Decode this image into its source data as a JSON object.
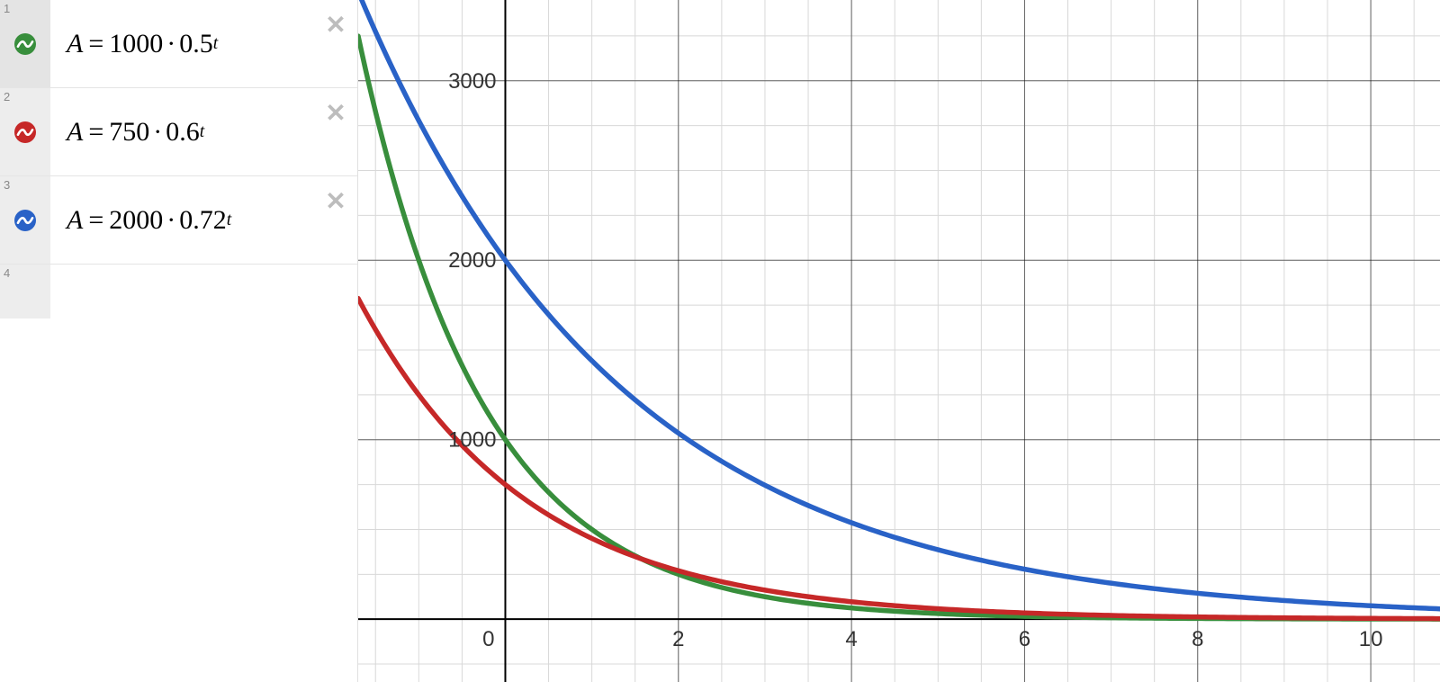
{
  "sidebar": {
    "expressions": [
      {
        "index": "1",
        "color": "#388e3c",
        "var": "A",
        "coef": "1000",
        "base": "0.5",
        "exp": "t"
      },
      {
        "index": "2",
        "color": "#c62828",
        "var": "A",
        "coef": "750",
        "base": "0.6",
        "exp": "t"
      },
      {
        "index": "3",
        "color": "#2962c7",
        "var": "A",
        "coef": "2000",
        "base": "0.72",
        "exp": "t"
      }
    ],
    "empty_index": "4"
  },
  "chart": {
    "type": "line",
    "background_color": "#ffffff",
    "grid_minor_color": "#d8d8d8",
    "axis_color": "#000000",
    "axis_width": 2,
    "line_width": 5.5,
    "x_range_from": -1.7,
    "x_range_to": 10.8,
    "y_range_from": -350,
    "y_range_to": 3450,
    "x_minor_step": 0.5,
    "y_minor_step": 250,
    "x_tick_labels": [
      {
        "value": 0,
        "label": "0"
      },
      {
        "value": 2,
        "label": "2"
      },
      {
        "value": 4,
        "label": "4"
      },
      {
        "value": 6,
        "label": "6"
      },
      {
        "value": 8,
        "label": "8"
      },
      {
        "value": 10,
        "label": "10"
      }
    ],
    "y_tick_labels": [
      {
        "value": 1000,
        "label": "1000"
      },
      {
        "value": 2000,
        "label": "2000"
      },
      {
        "value": 3000,
        "label": "3000"
      }
    ],
    "label_color": "#333333",
    "label_fontsize": 24,
    "series": [
      {
        "name": "green",
        "color": "#388e3c",
        "coef": 1000,
        "base": 0.5
      },
      {
        "name": "red",
        "color": "#c62828",
        "coef": 750,
        "base": 0.6
      },
      {
        "name": "blue",
        "color": "#2962c7",
        "coef": 2000,
        "base": 0.72
      }
    ]
  }
}
